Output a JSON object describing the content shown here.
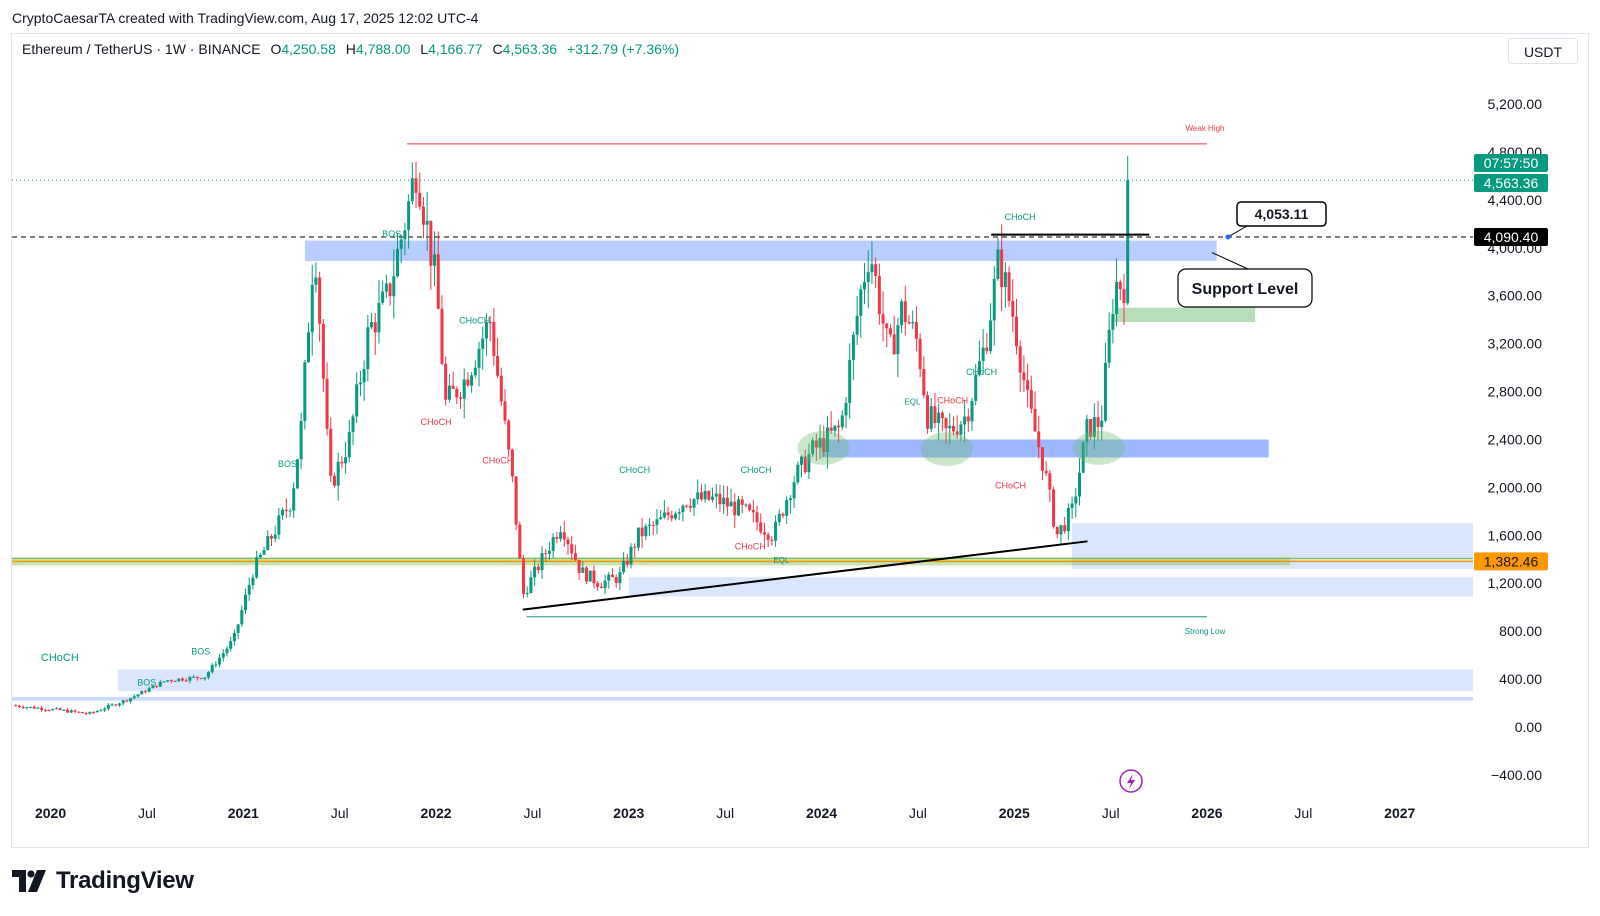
{
  "credit": "CryptoCaesarTA created with TradingView.com, Aug 17, 2025 12:02 UTC-4",
  "legend": {
    "symbol": "Ethereum / TetherUS · 1W · BINANCE",
    "o_label": "O",
    "o": "4,250.58",
    "h_label": "H",
    "h": "4,788.00",
    "l_label": "L",
    "l": "4,166.77",
    "c_label": "C",
    "c": "4,563.36",
    "change": "+312.79 (+7.36%)"
  },
  "currency": "USDT",
  "brand": "TradingView",
  "colors": {
    "up": "#089981",
    "down": "#f23645",
    "zone": "#2962ff",
    "zone_light": "#bbd2f8",
    "green_zone": "#a5d6a7",
    "weak_high": "#f23645",
    "strong_low": "#089981",
    "orange": "#ff9800"
  },
  "chart_data": {
    "type": "candlestick",
    "interval": "1W",
    "ylim": [
      -500,
      5700
    ],
    "x_ticks": [
      "2020",
      "Jul",
      "2021",
      "Jul",
      "2022",
      "Jul",
      "2023",
      "Jul",
      "2024",
      "Jul",
      "2025",
      "Jul",
      "2026",
      "Jul",
      "2027"
    ],
    "x_tick_years": [
      2020.0,
      2020.5,
      2021.0,
      2021.5,
      2022.0,
      2022.5,
      2023.0,
      2023.5,
      2024.0,
      2024.5,
      2025.0,
      2025.5,
      2026.0,
      2026.5,
      2027.0
    ],
    "y_ticks": [
      "5,200.00",
      "4,800.00",
      "4,400.00",
      "4,000.00",
      "3,600.00",
      "3,200.00",
      "2,800.00",
      "2,400.00",
      "2,000.00",
      "1,600.00",
      "1,200.00",
      "800.00",
      "400.00",
      "0.00",
      "−400.00"
    ],
    "y_tick_values": [
      5200,
      4800,
      4400,
      4000,
      3600,
      3200,
      2800,
      2400,
      2000,
      1600,
      1200,
      800,
      400,
      0,
      -400
    ],
    "price_path": [
      [
        2019.8,
        180
      ],
      [
        2020.05,
        140
      ],
      [
        2020.2,
        110
      ],
      [
        2020.4,
        230
      ],
      [
        2020.6,
        390
      ],
      [
        2020.8,
        420
      ],
      [
        2020.95,
        730
      ],
      [
        2021.05,
        1300
      ],
      [
        2021.15,
        1600
      ],
      [
        2021.25,
        1900
      ],
      [
        2021.3,
        2500
      ],
      [
        2021.37,
        4100
      ],
      [
        2021.45,
        2000
      ],
      [
        2021.55,
        2400
      ],
      [
        2021.65,
        3300
      ],
      [
        2021.75,
        3600
      ],
      [
        2021.85,
        4300
      ],
      [
        2021.9,
        4700
      ],
      [
        2022.0,
        3700
      ],
      [
        2022.05,
        2700
      ],
      [
        2022.15,
        2900
      ],
      [
        2022.28,
        3400
      ],
      [
        2022.4,
        2000
      ],
      [
        2022.45,
        1100
      ],
      [
        2022.55,
        1400
      ],
      [
        2022.65,
        1700
      ],
      [
        2022.75,
        1300
      ],
      [
        2022.85,
        1200
      ],
      [
        2022.95,
        1250
      ],
      [
        2023.05,
        1600
      ],
      [
        2023.15,
        1700
      ],
      [
        2023.3,
        1900
      ],
      [
        2023.45,
        1900
      ],
      [
        2023.6,
        1800
      ],
      [
        2023.75,
        1600
      ],
      [
        2023.85,
        2050
      ],
      [
        2023.95,
        2300
      ],
      [
        2024.1,
        2500
      ],
      [
        2024.2,
        3600
      ],
      [
        2024.25,
        4000
      ],
      [
        2024.35,
        3100
      ],
      [
        2024.42,
        3500
      ],
      [
        2024.5,
        3200
      ],
      [
        2024.55,
        2600
      ],
      [
        2024.65,
        2450
      ],
      [
        2024.75,
        2600
      ],
      [
        2024.85,
        3200
      ],
      [
        2024.92,
        3900
      ],
      [
        2025.0,
        3400
      ],
      [
        2025.07,
        2700
      ],
      [
        2025.15,
        2200
      ],
      [
        2025.22,
        1600
      ],
      [
        2025.3,
        1800
      ],
      [
        2025.38,
        2500
      ],
      [
        2025.45,
        2550
      ],
      [
        2025.52,
        3700
      ],
      [
        2025.57,
        3700
      ],
      [
        2025.6,
        4563
      ]
    ],
    "zones": [
      {
        "x0": 2021.32,
        "x1": 2026.05,
        "y0": 3890,
        "y1": 4060,
        "color": "#2962ff",
        "opacity": 0.32
      },
      {
        "x0": 2024.0,
        "x1": 2026.32,
        "y0": 2250,
        "y1": 2400,
        "color": "#2962ff",
        "opacity": 0.45
      },
      {
        "x0": 2025.3,
        "x1": 2027.38,
        "y0": 1320,
        "y1": 1700,
        "color": "#bbd2f8",
        "opacity": 0.55
      },
      {
        "x0": 2023.0,
        "x1": 2027.38,
        "y0": 1090,
        "y1": 1250,
        "color": "#bbd2f8",
        "opacity": 0.55
      },
      {
        "x0": 2020.35,
        "x1": 2027.38,
        "y0": 300,
        "y1": 480,
        "color": "#bbd2f8",
        "opacity": 0.55
      },
      {
        "x0": 2019.8,
        "x1": 2027.38,
        "y0": 220,
        "y1": 250,
        "color": "#bbd2f8",
        "opacity": 0.8
      },
      {
        "x0": 2025.52,
        "x1": 2026.25,
        "y0": 3380,
        "y1": 3500,
        "color": "#a5d6a7",
        "opacity": 0.8
      }
    ],
    "green_band": {
      "y": 1382.46,
      "x1": 2026.43
    },
    "trendline": [
      [
        2022.45,
        980
      ],
      [
        2025.38,
        1550
      ]
    ],
    "weak_high": {
      "label": "Weak High",
      "y": 4868,
      "x0": 2021.85,
      "x1": 2026.0
    },
    "strong_low": {
      "label": "Strong Low",
      "y": 920,
      "x0": 2022.47,
      "x1": 2026.0
    },
    "annotations": [
      {
        "text": "CHoCH",
        "x": 2019.95,
        "y": 550,
        "size": 11,
        "color": "#089981"
      },
      {
        "text": "BOS",
        "x": 2020.45,
        "y": 345,
        "size": 9,
        "color": "#089981"
      },
      {
        "text": "BOS",
        "x": 2020.73,
        "y": 605,
        "size": 9,
        "color": "#089981"
      },
      {
        "text": "BOS",
        "x": 2021.18,
        "y": 2170,
        "size": 9,
        "color": "#089981"
      },
      {
        "text": "BOS",
        "x": 2021.72,
        "y": 4090,
        "size": 9,
        "color": "#089981"
      },
      {
        "text": "CHoCH",
        "x": 2021.92,
        "y": 2520,
        "size": 9,
        "color": "#f23645"
      },
      {
        "text": "CHoCH",
        "x": 2022.12,
        "y": 3370,
        "size": 9,
        "color": "#089981"
      },
      {
        "text": "CHoCH",
        "x": 2022.24,
        "y": 2200,
        "size": 9,
        "color": "#f23645"
      },
      {
        "text": "CHoCH",
        "x": 2022.95,
        "y": 2120,
        "size": 9,
        "color": "#089981"
      },
      {
        "text": "CHoCH",
        "x": 2023.58,
        "y": 2120,
        "size": 9,
        "color": "#089981"
      },
      {
        "text": "CHoCH",
        "x": 2023.55,
        "y": 1480,
        "size": 9,
        "color": "#f23645"
      },
      {
        "text": "EQL",
        "x": 2023.75,
        "y": 1370,
        "size": 8,
        "color": "#089981"
      },
      {
        "text": "CHoCH",
        "x": 2024.95,
        "y": 4230,
        "size": 9,
        "color": "#089981"
      },
      {
        "text": "CHoCH",
        "x": 2024.6,
        "y": 2700,
        "size": 9,
        "color": "#f23645"
      },
      {
        "text": "CHoCH",
        "x": 2024.75,
        "y": 2940,
        "size": 9,
        "color": "#089981"
      },
      {
        "text": "CHoCH",
        "x": 2024.9,
        "y": 1990,
        "size": 9,
        "color": "#f23645"
      },
      {
        "text": "EQL",
        "x": 2024.43,
        "y": 2690,
        "size": 8,
        "color": "#089981"
      }
    ],
    "callout_price": "4,053.11",
    "callout_label": "Support Level",
    "price_labels": [
      {
        "text": "07:57:50",
        "y": 4670,
        "bg": "#089981",
        "fg": "#ffffff"
      },
      {
        "text": "4,563.36",
        "y": 4510,
        "bg": "#089981",
        "fg": "#ffffff"
      },
      {
        "text": "4,090.40",
        "y": 4090,
        "bg": "#000000",
        "fg": "#ffffff"
      },
      {
        "text": "1,382.46",
        "y": 1382,
        "bg": "#ff9800",
        "fg": "#131722"
      }
    ],
    "last_price": 4563.36,
    "crosshair_price": 4090.4
  }
}
